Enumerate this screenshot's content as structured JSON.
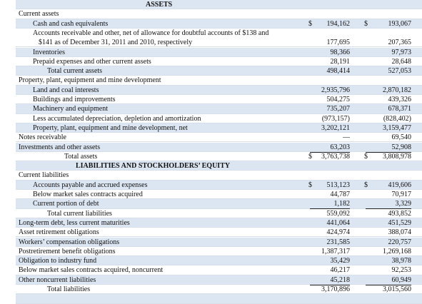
{
  "assets": {
    "title": "ASSETS",
    "rows": [
      {
        "label": "Current assets"
      },
      {
        "label": "Cash and cash equivalents",
        "cur1": "$",
        "v1": "194,162",
        "cur2": "$",
        "v2": "193,067"
      },
      {
        "label": "Accounts receivable and other, net of allowance for doubtful accounts of $138 and",
        "label_cont": "$141 as of December 31, 2011 and 2010, respectively",
        "v1": "177,695",
        "v2": "207,365"
      },
      {
        "label": "Inventories",
        "v1": "98,366",
        "v2": "97,973"
      },
      {
        "label": "Prepaid expenses and other current assets",
        "v1": "28,191",
        "v2": "28,648"
      },
      {
        "label": "Total current assets",
        "v1": "498,414",
        "v2": "527,053"
      },
      {
        "label": "Property, plant, equipment and mine development"
      },
      {
        "label": "Land and coal interests",
        "v1": "2,935,796",
        "v2": "2,870,182"
      },
      {
        "label": "Buildings and improvements",
        "v1": "504,275",
        "v2": "439,326"
      },
      {
        "label": "Machinery and equipment",
        "v1": "735,207",
        "v2": "678,371"
      },
      {
        "label": "Less accumulated depreciation, depletion and amortization",
        "v1": "(973,157)",
        "v2": "(828,402)"
      },
      {
        "label": "Property, plant, equipment and mine development, net",
        "v1": "3,202,121",
        "v2": "3,159,477"
      },
      {
        "label": "Notes receivable",
        "v1": "—",
        "v2": "69,540"
      },
      {
        "label": "Investments and other assets",
        "v1": "63,203",
        "v2": "52,908"
      },
      {
        "label": "Total assets",
        "cur1": "$",
        "v1": "3,763,738",
        "cur2": "$",
        "v2": "3,808,978"
      }
    ]
  },
  "liabilities": {
    "title": "LIABILITIES AND STOCKHOLDERS’ EQUITY",
    "rows": [
      {
        "label": "Current liabilities"
      },
      {
        "label": "Accounts payable and accrued expenses",
        "cur1": "$",
        "v1": "513,123",
        "cur2": "$",
        "v2": "419,606"
      },
      {
        "label": "Below market sales contracts acquired",
        "v1": "44,787",
        "v2": "70,917"
      },
      {
        "label": "Current portion of debt",
        "v1": "1,182",
        "v2": "3,329"
      },
      {
        "label": "Total current liabilities",
        "v1": "559,092",
        "v2": "493,852"
      },
      {
        "label": "Long-term debt, less current maturities",
        "v1": "441,064",
        "v2": "451,529"
      },
      {
        "label": "Asset retirement obligations",
        "v1": "424,974",
        "v2": "388,074"
      },
      {
        "label": "Workers’ compensation obligations",
        "v1": "231,585",
        "v2": "220,757"
      },
      {
        "label": "Postretirement benefit obligations",
        "v1": "1,387,317",
        "v2": "1,269,168"
      },
      {
        "label": "Obligation to industry fund",
        "v1": "35,429",
        "v2": "38,978"
      },
      {
        "label": "Below market sales contracts acquired, noncurrent",
        "v1": "46,217",
        "v2": "92,253"
      },
      {
        "label": "Other noncurrent liabilities",
        "v1": "45,218",
        "v2": "60,949"
      },
      {
        "label": "Total liabilities",
        "v1": "3,170,896",
        "v2": "3,015,560"
      }
    ]
  }
}
